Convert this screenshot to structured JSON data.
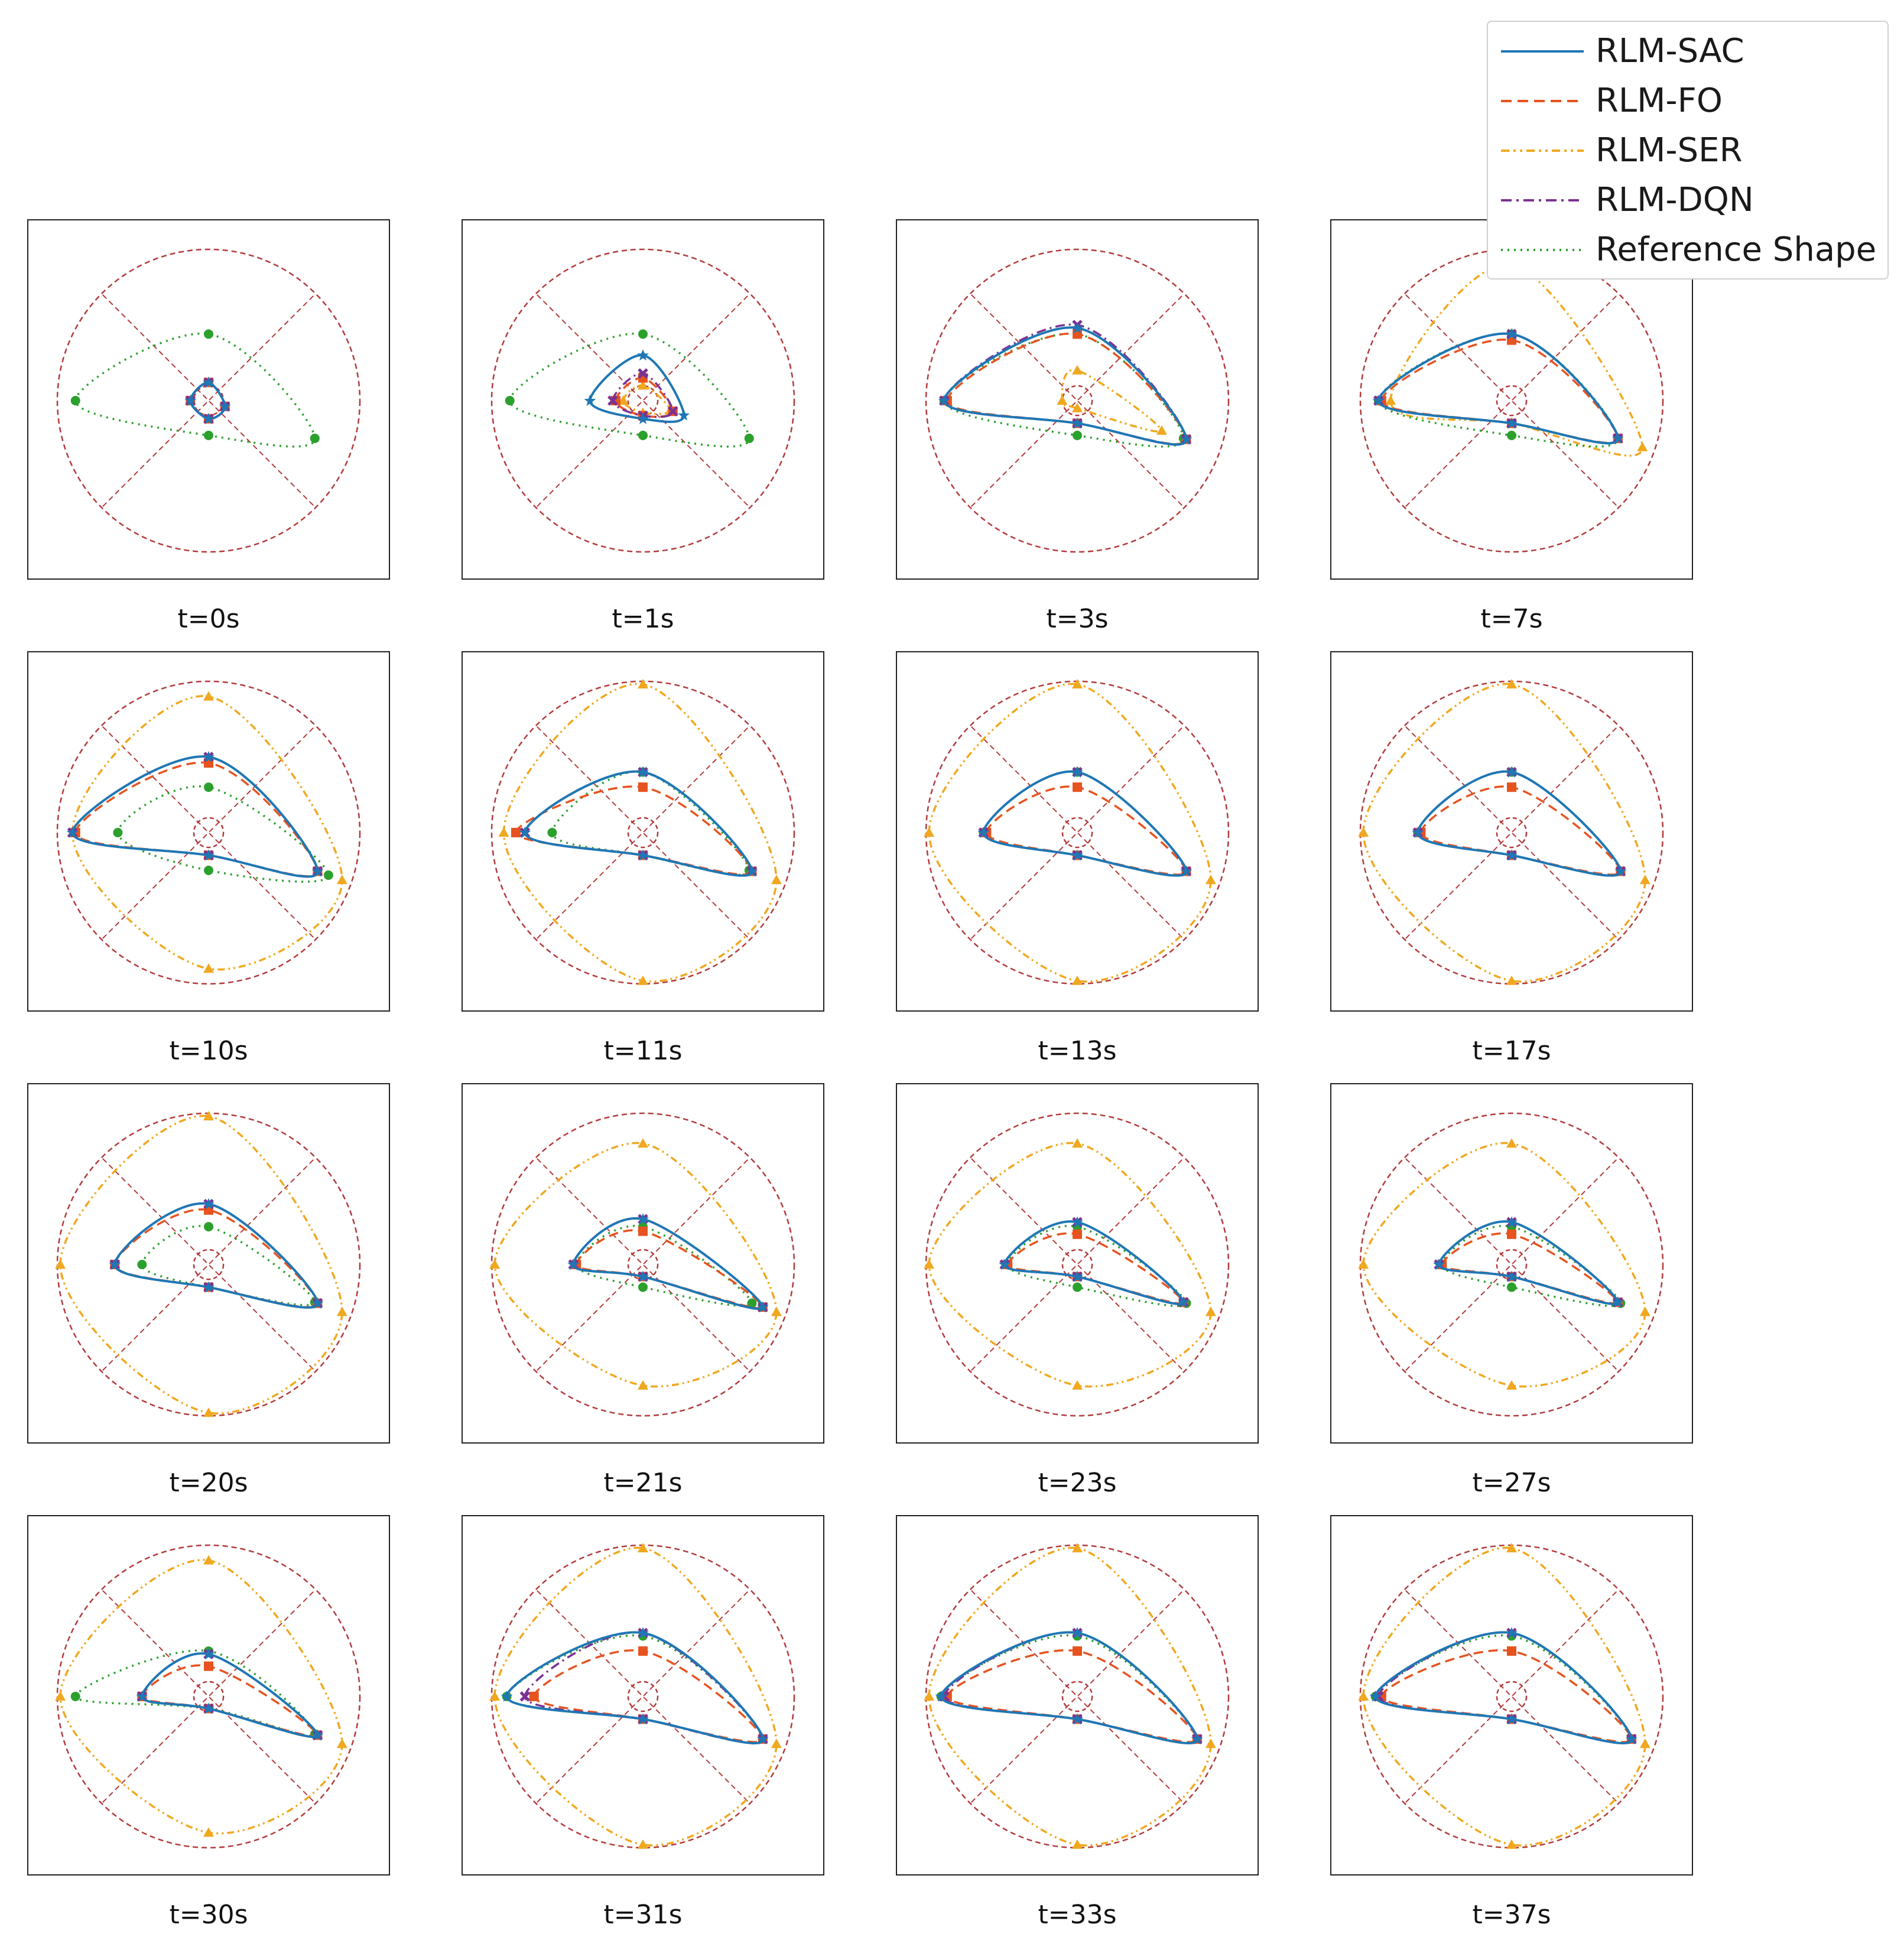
{
  "figure": {
    "legend": [
      {
        "label": "RLM-SAC",
        "color": "#1f77b4",
        "style": "solid",
        "marker": "star"
      },
      {
        "label": "RLM-FO",
        "color": "#e6531f",
        "style": "dashed",
        "marker": "square"
      },
      {
        "label": "RLM-SER",
        "color": "#f0a81f",
        "style": "dashdotdot",
        "marker": "triangle"
      },
      {
        "label": "RLM-DQN",
        "color": "#7b3294",
        "style": "dashdot",
        "marker": "x"
      },
      {
        "label": "Reference Shape",
        "color": "#2ca02c",
        "style": "dotted",
        "marker": "circle"
      }
    ],
    "guide_color": "#b23a3a"
  },
  "chart_data": {
    "type": "scatter",
    "description_units": "polar control-point radius normalized to outer circle = 1.0, angles in degrees",
    "control_angles_deg": [
      180,
      90,
      0,
      -90
    ],
    "panels": [
      {
        "title": "t=0s",
        "ref": [
          0.88,
          0.44,
          0.78,
          0.23
        ],
        "sac": [
          0.12,
          0.12,
          0.12,
          0.12
        ],
        "fo": [
          0.12,
          0.12,
          0.12,
          0.12
        ],
        "ser": [
          0.12,
          0.12,
          0.12,
          0.12
        ],
        "dqn": [
          0.12,
          0.12,
          0.12,
          0.12
        ]
      },
      {
        "title": "t=1s",
        "ref": [
          0.88,
          0.44,
          0.78,
          0.23
        ],
        "sac": [
          0.35,
          0.3,
          0.3,
          0.12
        ],
        "fo": [
          0.18,
          0.15,
          0.22,
          0.1
        ],
        "ser": [
          0.13,
          0.1,
          0.2,
          0.08
        ],
        "dqn": [
          0.2,
          0.18,
          0.22,
          0.1
        ]
      },
      {
        "title": "t=3s",
        "ref": [
          0.88,
          0.44,
          0.78,
          0.23
        ],
        "sac": [
          0.88,
          0.48,
          0.8,
          0.15
        ],
        "fo": [
          0.86,
          0.44,
          0.8,
          0.15
        ],
        "ser": [
          0.1,
          0.2,
          0.62,
          0.05
        ],
        "dqn": [
          0.88,
          0.5,
          0.8,
          0.15
        ]
      },
      {
        "title": "t=7s",
        "ref": [
          0.88,
          0.44,
          0.78,
          0.23
        ],
        "sac": [
          0.88,
          0.44,
          0.78,
          0.15
        ],
        "fo": [
          0.86,
          0.4,
          0.78,
          0.15
        ],
        "ser": [
          0.8,
          0.9,
          0.96,
          0.15
        ],
        "dqn": [
          0.88,
          0.44,
          0.78,
          0.15
        ]
      },
      {
        "title": "t=10s",
        "ref": [
          0.6,
          0.3,
          0.88,
          0.25
        ],
        "sac": [
          0.9,
          0.5,
          0.8,
          0.15
        ],
        "fo": [
          0.88,
          0.46,
          0.8,
          0.15
        ],
        "ser": [
          0.9,
          0.9,
          0.98,
          0.9
        ],
        "dqn": [
          0.9,
          0.5,
          0.8,
          0.15
        ]
      },
      {
        "title": "t=11s",
        "ref": [
          0.6,
          0.4,
          0.78,
          0.15
        ],
        "sac": [
          0.78,
          0.4,
          0.8,
          0.15
        ],
        "fo": [
          0.84,
          0.3,
          0.8,
          0.15
        ],
        "ser": [
          0.92,
          0.98,
          0.98,
          0.98
        ],
        "dqn": [
          0.78,
          0.4,
          0.8,
          0.15
        ]
      },
      {
        "title": "t=13s",
        "ref": [
          0.62,
          0.4,
          0.8,
          0.15
        ],
        "sac": [
          0.62,
          0.4,
          0.8,
          0.15
        ],
        "fo": [
          0.6,
          0.3,
          0.8,
          0.15
        ],
        "ser": [
          0.98,
          0.98,
          0.98,
          0.98
        ],
        "dqn": [
          0.62,
          0.4,
          0.8,
          0.15
        ]
      },
      {
        "title": "t=17s",
        "ref": [
          0.62,
          0.4,
          0.8,
          0.15
        ],
        "sac": [
          0.62,
          0.4,
          0.8,
          0.15
        ],
        "fo": [
          0.6,
          0.3,
          0.8,
          0.15
        ],
        "ser": [
          0.98,
          0.98,
          0.98,
          0.98
        ],
        "dqn": [
          0.62,
          0.4,
          0.8,
          0.15
        ]
      },
      {
        "title": "t=20s",
        "ref": [
          0.44,
          0.25,
          0.78,
          0.15
        ],
        "sac": [
          0.62,
          0.4,
          0.8,
          0.15
        ],
        "fo": [
          0.62,
          0.36,
          0.8,
          0.15
        ],
        "ser": [
          0.98,
          0.98,
          0.98,
          0.98
        ],
        "dqn": [
          0.62,
          0.4,
          0.8,
          0.15
        ]
      },
      {
        "title": "t=21s",
        "ref": [
          0.44,
          0.25,
          0.8,
          0.15
        ],
        "sac": [
          0.46,
          0.3,
          0.88,
          0.08
        ],
        "fo": [
          0.44,
          0.22,
          0.88,
          0.08
        ],
        "ser": [
          0.98,
          0.8,
          0.98,
          0.8
        ],
        "dqn": [
          0.46,
          0.3,
          0.88,
          0.08
        ]
      },
      {
        "title": "t=23s",
        "ref": [
          0.46,
          0.25,
          0.8,
          0.15
        ],
        "sac": [
          0.48,
          0.28,
          0.78,
          0.08
        ],
        "fo": [
          0.46,
          0.2,
          0.78,
          0.08
        ],
        "ser": [
          0.98,
          0.8,
          0.98,
          0.8
        ],
        "dqn": [
          0.48,
          0.28,
          0.78,
          0.08
        ]
      },
      {
        "title": "t=27s",
        "ref": [
          0.46,
          0.25,
          0.8,
          0.15
        ],
        "sac": [
          0.48,
          0.28,
          0.78,
          0.08
        ],
        "fo": [
          0.46,
          0.2,
          0.78,
          0.08
        ],
        "ser": [
          0.98,
          0.8,
          0.98,
          0.8
        ],
        "dqn": [
          0.48,
          0.28,
          0.78,
          0.08
        ]
      },
      {
        "title": "t=30s",
        "ref": [
          0.88,
          0.3,
          0.78,
          0.08
        ],
        "sac": [
          0.44,
          0.28,
          0.8,
          0.08
        ],
        "fo": [
          0.44,
          0.2,
          0.8,
          0.08
        ],
        "ser": [
          0.98,
          0.9,
          0.98,
          0.9
        ],
        "dqn": [
          0.44,
          0.28,
          0.8,
          0.08
        ]
      },
      {
        "title": "t=31s",
        "ref": [
          0.9,
          0.4,
          0.88,
          0.15
        ],
        "sac": [
          0.9,
          0.42,
          0.88,
          0.15
        ],
        "fo": [
          0.72,
          0.3,
          0.88,
          0.15
        ],
        "ser": [
          0.98,
          0.98,
          0.98,
          0.98
        ],
        "dqn": [
          0.78,
          0.42,
          0.88,
          0.15
        ]
      },
      {
        "title": "t=33s",
        "ref": [
          0.9,
          0.4,
          0.88,
          0.15
        ],
        "sac": [
          0.9,
          0.42,
          0.88,
          0.15
        ],
        "fo": [
          0.86,
          0.3,
          0.88,
          0.15
        ],
        "ser": [
          0.98,
          0.98,
          0.98,
          0.98
        ],
        "dqn": [
          0.88,
          0.42,
          0.88,
          0.15
        ]
      },
      {
        "title": "t=37s",
        "ref": [
          0.9,
          0.4,
          0.88,
          0.15
        ],
        "sac": [
          0.9,
          0.42,
          0.88,
          0.15
        ],
        "fo": [
          0.86,
          0.3,
          0.88,
          0.15
        ],
        "ser": [
          0.98,
          0.98,
          0.98,
          0.98
        ],
        "dqn": [
          0.88,
          0.42,
          0.88,
          0.15
        ]
      }
    ]
  }
}
